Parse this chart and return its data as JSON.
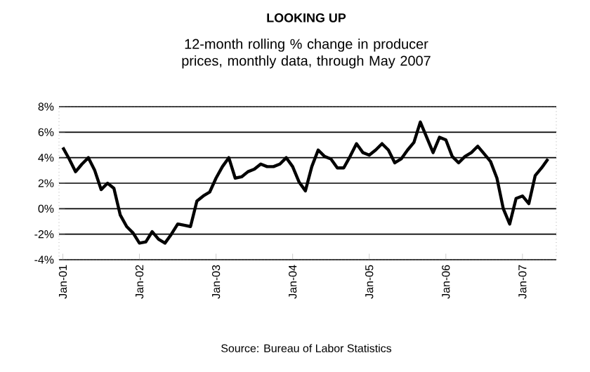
{
  "chart_data": {
    "type": "line",
    "title": "LOOKING UP",
    "subtitle": "12-month rolling % change in producer prices, monthly data, through May 2007",
    "categories": [
      "Jan-01",
      null,
      null,
      null,
      null,
      null,
      null,
      null,
      null,
      null,
      null,
      null,
      "Jan-02",
      null,
      null,
      null,
      null,
      null,
      null,
      null,
      null,
      null,
      null,
      null,
      "Jan-03",
      null,
      null,
      null,
      null,
      null,
      null,
      null,
      null,
      null,
      null,
      null,
      "Jan-04",
      null,
      null,
      null,
      null,
      null,
      null,
      null,
      null,
      null,
      null,
      null,
      "Jan-05",
      null,
      null,
      null,
      null,
      null,
      null,
      null,
      null,
      null,
      null,
      null,
      "Jan-06",
      null,
      null,
      null,
      null,
      null,
      null,
      null,
      null,
      null,
      null,
      null,
      "Jan-07",
      null,
      null,
      null,
      null
    ],
    "series": [
      {
        "color": "#000000",
        "values": [
          4.8,
          3.9,
          2.9,
          3.5,
          4.0,
          3.0,
          1.5,
          2.0,
          1.6,
          -0.5,
          -1.4,
          -1.9,
          -2.7,
          -2.6,
          -1.8,
          -2.4,
          -2.7,
          -2.0,
          -1.2,
          -1.3,
          -1.4,
          0.6,
          1.0,
          1.3,
          2.4,
          3.3,
          4.0,
          2.4,
          2.5,
          2.9,
          3.1,
          3.5,
          3.3,
          3.3,
          3.5,
          4.0,
          3.3,
          2.1,
          1.4,
          3.3,
          4.6,
          4.1,
          3.9,
          3.2,
          3.2,
          4.1,
          5.1,
          4.4,
          4.2,
          4.6,
          5.1,
          4.6,
          3.6,
          3.9,
          4.6,
          5.2,
          6.8,
          5.6,
          4.4,
          5.6,
          5.4,
          4.1,
          3.6,
          4.1,
          4.4,
          4.9,
          4.3,
          3.7,
          2.4,
          0.0,
          -1.2,
          0.8,
          1.0,
          0.4,
          2.6,
          3.2,
          3.9
        ]
      }
    ],
    "ylim": [
      -4,
      8
    ],
    "yticks": [
      {
        "value": -4,
        "label": "-4%"
      },
      {
        "value": -2,
        "label": "-2%"
      },
      {
        "value": 0,
        "label": "0%"
      },
      {
        "value": 2,
        "label": "2%"
      },
      {
        "value": 4,
        "label": "4%"
      },
      {
        "value": 6,
        "label": "6%"
      },
      {
        "value": 8,
        "label": "8%"
      }
    ],
    "grid": "y",
    "marker": "none",
    "line_style": "solid",
    "annotations": [
      "Source: Bureau of Labor Statistics"
    ]
  }
}
